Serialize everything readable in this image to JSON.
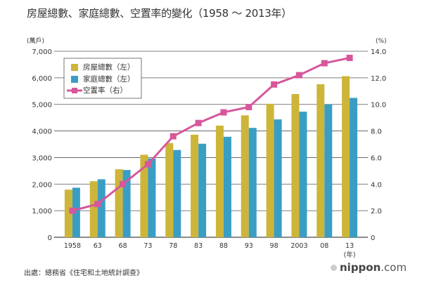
{
  "title": "房屋總數、家庭總數、空置率的變化（1958 ～ 2013年）",
  "source": "出處：總務省《住宅和土地統計調查》",
  "brand": {
    "name": "nippon",
    "suffix": ".com"
  },
  "colors": {
    "housing": "#cdb53a",
    "households": "#3a9ec4",
    "vacancy": "#d6579c",
    "grid": "#333333"
  },
  "chart_data": {
    "type": "bar",
    "title": "房屋總數、家庭總數、空置率的變化（1958 ～ 2013年）",
    "categories": [
      "1958",
      "63",
      "68",
      "73",
      "78",
      "83",
      "88",
      "93",
      "98",
      "2003",
      "08",
      "13"
    ],
    "xlabel": "(年)",
    "ylabel": "(萬戶)",
    "y2label": "(%)",
    "ylim": [
      0,
      7000
    ],
    "y2lim": [
      0,
      14
    ],
    "yticks": [
      "0",
      "1,000",
      "2,000",
      "3,000",
      "4,000",
      "5,000",
      "6,000",
      "7,000"
    ],
    "y2ticks": [
      "0",
      "2.0",
      "4.0",
      "6.0",
      "8.0",
      "10.0",
      "12.0",
      "14.0"
    ],
    "grid": true,
    "legend_position": "top-left",
    "series": [
      {
        "name": "房屋總數（左）",
        "type": "bar",
        "axis": "left",
        "values": [
          1793,
          2109,
          2559,
          3106,
          3545,
          3861,
          4201,
          4588,
          5025,
          5389,
          5759,
          6063
        ]
      },
      {
        "name": "家庭總數（左）",
        "type": "bar",
        "axis": "left",
        "values": [
          1865,
          2182,
          2532,
          2965,
          3284,
          3520,
          3781,
          4116,
          4436,
          4726,
          4997,
          5245
        ]
      },
      {
        "name": "空置率（右）",
        "type": "line",
        "axis": "right",
        "values": [
          2.0,
          2.5,
          4.0,
          5.5,
          7.6,
          8.6,
          9.4,
          9.8,
          11.5,
          12.2,
          13.1,
          13.5
        ]
      }
    ]
  }
}
